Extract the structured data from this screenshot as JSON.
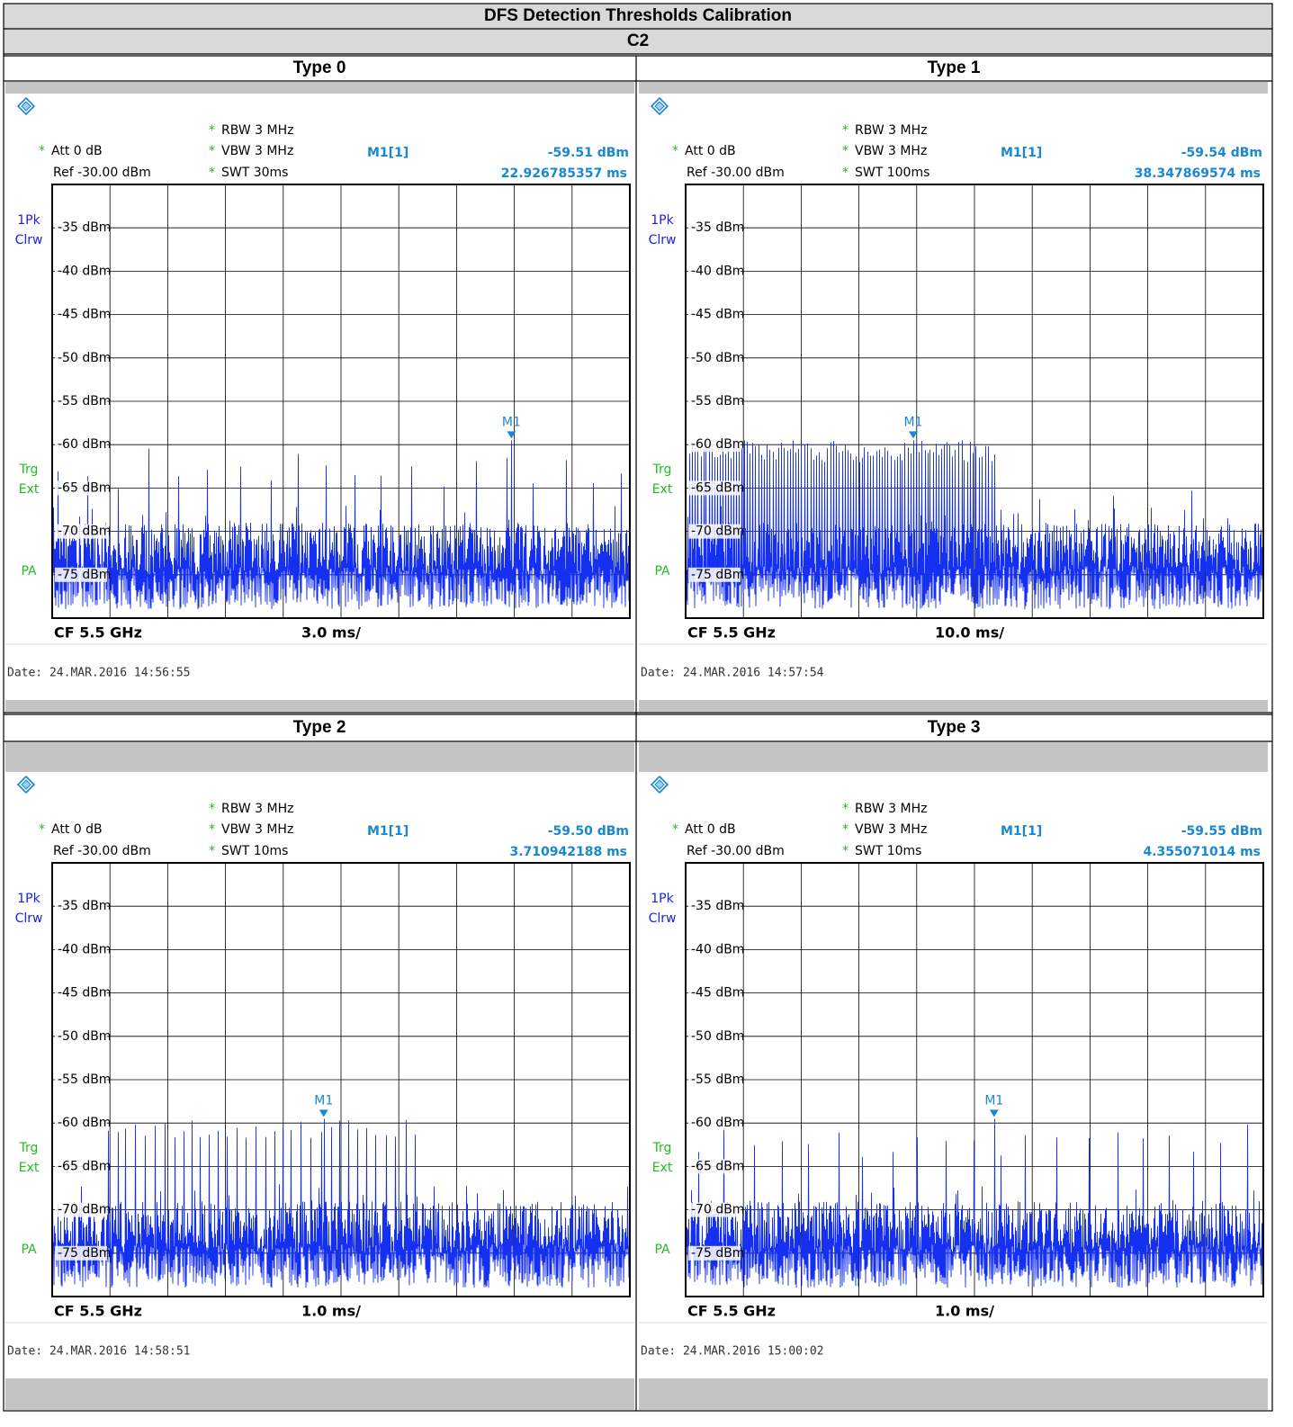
{
  "header": {
    "title": "DFS Detection Thresholds Calibration",
    "subtitle": "C2"
  },
  "common": {
    "flag": "*",
    "rbw": "RBW 3 MHz",
    "att": "Att  0 dB",
    "vbw": "VBW 3 MHz",
    "ref": "Ref  -30.00 dBm",
    "marker": "M1[1]",
    "marker_name": "M1",
    "cf": "CF 5.5 GHz",
    "trace": [
      "1Pk",
      "Clrw"
    ],
    "trigger": [
      "Trg",
      "Ext"
    ],
    "pa": "PA",
    "y_labels": [
      "-35 dBm",
      "-40 dBm",
      "-45 dBm",
      "-50 dBm",
      "-55 dBm",
      "-60 dBm",
      "-65 dBm",
      "-70 dBm",
      "-75 dBm"
    ]
  },
  "panels": [
    {
      "label": "Type 0",
      "swt": "SWT 30ms",
      "marker_level": "-59.51 dBm",
      "marker_time": "22.926785357 ms",
      "span": "3.0 ms/",
      "date": "Date: 24.MAR.2016  14:56:55"
    },
    {
      "label": "Type 1",
      "swt": "SWT 100ms",
      "marker_level": "-59.54 dBm",
      "marker_time": "38.347869574 ms",
      "span": "10.0 ms/",
      "date": "Date: 24.MAR.2016  14:57:54"
    },
    {
      "label": "Type 2",
      "swt": "SWT 10ms",
      "marker_level": "-59.50 dBm",
      "marker_time": "3.710942188 ms",
      "span": "1.0 ms/",
      "date": "Date: 24.MAR.2016  14:58:51"
    },
    {
      "label": "Type 3",
      "swt": "SWT 10ms",
      "marker_level": "-59.55 dBm",
      "marker_time": "4.355071014 ms",
      "span": "1.0 ms/",
      "date": "Date: 24.MAR.2016  15:00:02"
    }
  ]
}
